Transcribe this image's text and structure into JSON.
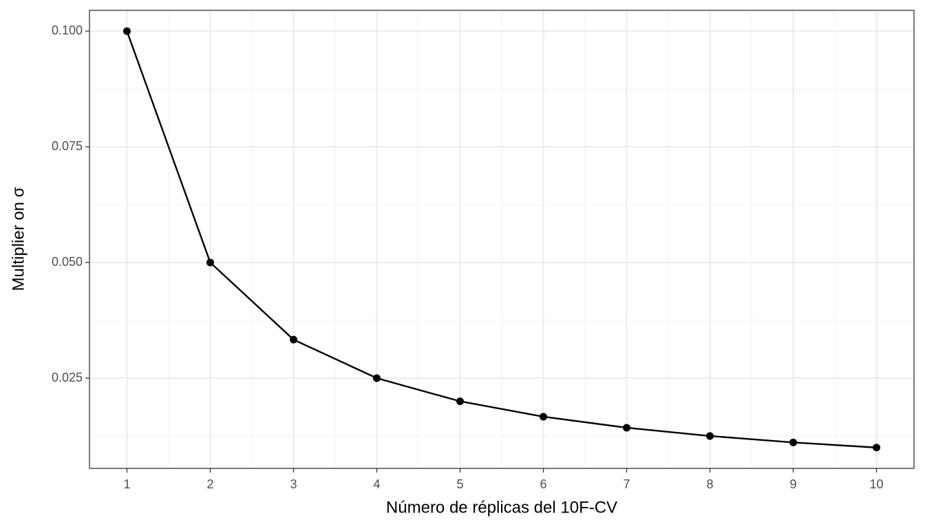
{
  "chart_data": {
    "type": "line",
    "x_label": "Número de réplicas del 10F-CV",
    "y_label": "Multiplier on σ",
    "x": [
      1,
      2,
      3,
      4,
      5,
      6,
      7,
      8,
      9,
      10
    ],
    "series": [
      {
        "color": "#000000",
        "values": [
          0.1,
          0.05,
          0.03333,
          0.025,
          0.02,
          0.01667,
          0.01429,
          0.0125,
          0.01111,
          0.01
        ]
      }
    ],
    "xlim": [
      0.55,
      10.45
    ],
    "ylim": [
      0.0055,
      0.1045
    ],
    "xticks": [
      1,
      2,
      3,
      4,
      5,
      6,
      7,
      8,
      9,
      10
    ],
    "yticks": [
      {
        "value": 0.025,
        "label": "0.025"
      },
      {
        "value": 0.05,
        "label": "0.050"
      },
      0.075,
      {
        "value": 0.1,
        "label": "0.100"
      }
    ],
    "grid": true
  }
}
